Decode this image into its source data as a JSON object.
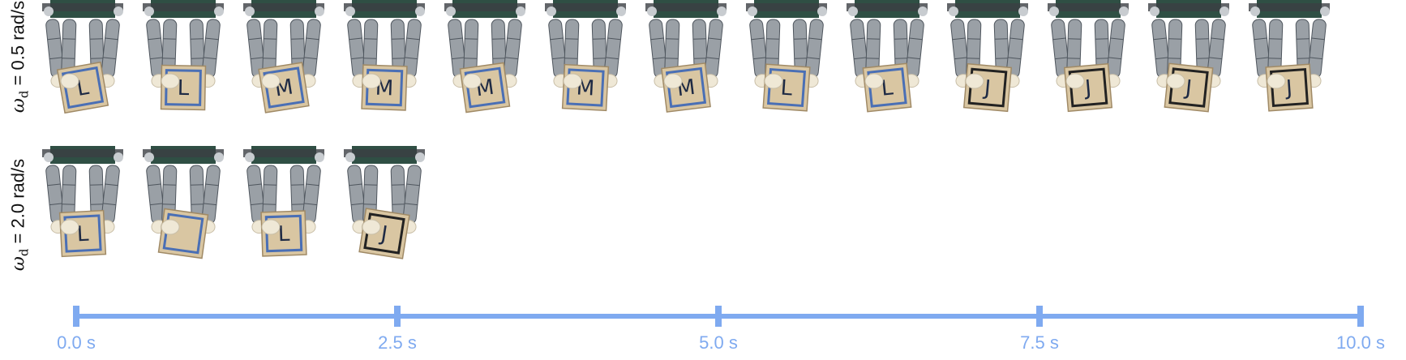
{
  "rows": [
    {
      "label": {
        "symbol": "ω",
        "subscript": "d",
        "value": " = 0.5 rad/s"
      },
      "frame_count": 13,
      "faces": [
        "L",
        "L",
        "M",
        "M",
        "M",
        "M",
        "M",
        "L",
        "L",
        "J",
        "J",
        "J",
        "J"
      ]
    },
    {
      "label": {
        "symbol": "ω",
        "subscript": "d",
        "value": " = 2.0 rad/s"
      },
      "frame_count": 4,
      "faces": [
        "L",
        "",
        "L",
        "J"
      ]
    }
  ],
  "timeline": {
    "ticks": [
      "0.0 s",
      "2.5 s",
      "5.0 s",
      "7.5 s",
      "10.0 s"
    ],
    "tick_values": [
      0,
      2.5,
      5.0,
      7.5,
      10.0
    ],
    "range": [
      0,
      10
    ],
    "color": "#7faaf0"
  },
  "colors": {
    "block": "#d9c6a2",
    "block_edge": "#a08a66",
    "finger": "#9aa0a6",
    "finger_dark": "#4f565e",
    "board": "#2f4f44",
    "tip": "#efe8d6",
    "cube_stripe_blue": "#4a6fb5",
    "cube_stripe_dark": "#222222"
  }
}
